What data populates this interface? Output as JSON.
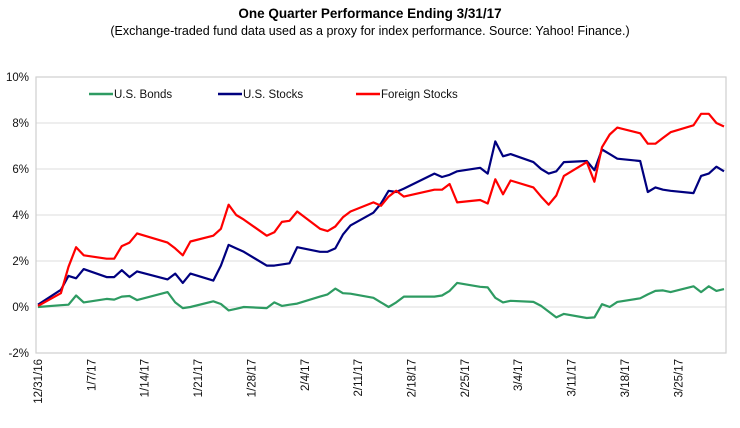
{
  "chart_data": {
    "type": "line",
    "title": "One Quarter Performance Ending  3/31/17",
    "subtitle": "(Exchange-traded fund data used as a proxy for index performance.  Source:  Yahoo! Finance.)",
    "xlabel": "",
    "ylabel": "",
    "ylim": [
      -2,
      10
    ],
    "y_ticks": [
      -2,
      0,
      2,
      4,
      6,
      8,
      10
    ],
    "y_tick_labels": [
      "-2%",
      "0%",
      "2%",
      "4%",
      "6%",
      "8%",
      "10%"
    ],
    "xlim": [
      "12/31/16",
      "3/31/17"
    ],
    "x_tick_labels": [
      "12/31/16",
      "1/7/17",
      "1/14/17",
      "1/21/17",
      "1/28/17",
      "2/4/17",
      "2/11/17",
      "2/18/17",
      "2/25/17",
      "3/4/17",
      "3/11/17",
      "3/18/17",
      "3/25/17"
    ],
    "grid": true,
    "legend_position": "top",
    "x": [
      "12/31/16",
      "1/3/17",
      "1/4/17",
      "1/5/17",
      "1/6/17",
      "1/9/17",
      "1/10/17",
      "1/11/17",
      "1/12/17",
      "1/13/17",
      "1/17/17",
      "1/18/17",
      "1/19/17",
      "1/20/17",
      "1/23/17",
      "1/24/17",
      "1/25/17",
      "1/26/17",
      "1/27/17",
      "1/30/17",
      "1/31/17",
      "2/1/17",
      "2/2/17",
      "2/3/17",
      "2/6/17",
      "2/7/17",
      "2/8/17",
      "2/9/17",
      "2/10/17",
      "2/13/17",
      "2/14/17",
      "2/15/17",
      "2/16/17",
      "2/17/17",
      "2/21/17",
      "2/22/17",
      "2/23/17",
      "2/24/17",
      "2/27/17",
      "2/28/17",
      "3/1/17",
      "3/2/17",
      "3/3/17",
      "3/6/17",
      "3/7/17",
      "3/8/17",
      "3/9/17",
      "3/10/17",
      "3/13/17",
      "3/14/17",
      "3/15/17",
      "3/16/17",
      "3/17/17",
      "3/20/17",
      "3/21/17",
      "3/22/17",
      "3/23/17",
      "3/24/17",
      "3/27/17",
      "3/28/17",
      "3/29/17",
      "3/30/17",
      "3/31/17"
    ],
    "series": [
      {
        "name": "U.S. Bonds",
        "color": "#2e9b62",
        "values": [
          0,
          0.08,
          0.1,
          0.5,
          0.2,
          0.35,
          0.32,
          0.45,
          0.48,
          0.3,
          0.65,
          0.2,
          -0.05,
          0.0,
          0.25,
          0.13,
          -0.15,
          -0.08,
          0.0,
          -0.05,
          0.2,
          0.05,
          0.1,
          0.15,
          0.45,
          0.55,
          0.8,
          0.6,
          0.58,
          0.4,
          0.2,
          0.0,
          0.2,
          0.45,
          0.45,
          0.5,
          0.7,
          1.05,
          0.88,
          0.85,
          0.4,
          0.2,
          0.27,
          0.22,
          0.05,
          -0.2,
          -0.45,
          -0.3,
          -0.48,
          -0.45,
          0.12,
          0.0,
          0.22,
          0.38,
          0.55,
          0.7,
          0.72,
          0.65,
          0.9,
          0.65,
          0.9,
          0.7,
          0.78
        ]
      },
      {
        "name": "U.S. Stocks",
        "color": "#00007f",
        "values": [
          0.1,
          0.75,
          1.35,
          1.25,
          1.65,
          1.3,
          1.3,
          1.6,
          1.3,
          1.55,
          1.2,
          1.45,
          1.05,
          1.45,
          1.15,
          1.8,
          2.7,
          2.55,
          2.4,
          1.8,
          1.8,
          1.85,
          1.9,
          2.6,
          2.4,
          2.4,
          2.55,
          3.15,
          3.55,
          4.1,
          4.5,
          5.05,
          5.0,
          5.15,
          5.8,
          5.65,
          5.75,
          5.9,
          6.05,
          5.8,
          7.2,
          6.55,
          6.65,
          6.3,
          6.0,
          5.8,
          5.9,
          6.3,
          6.35,
          5.95,
          6.85,
          6.65,
          6.45,
          6.35,
          5.0,
          5.2,
          5.1,
          5.05,
          4.95,
          5.7,
          5.8,
          6.1,
          5.9
        ]
      },
      {
        "name": "Foreign Stocks",
        "color": "#ff0000",
        "values": [
          0.05,
          0.6,
          1.75,
          2.6,
          2.25,
          2.1,
          2.1,
          2.65,
          2.8,
          3.2,
          2.8,
          2.55,
          2.25,
          2.85,
          3.1,
          3.4,
          4.45,
          4.0,
          3.8,
          3.1,
          3.25,
          3.7,
          3.75,
          4.15,
          3.4,
          3.3,
          3.5,
          3.9,
          4.15,
          4.55,
          4.4,
          4.8,
          5.05,
          4.8,
          5.1,
          5.1,
          5.35,
          4.55,
          4.65,
          4.5,
          5.55,
          4.9,
          5.5,
          5.2,
          4.8,
          4.45,
          4.85,
          5.7,
          6.3,
          5.45,
          6.95,
          7.5,
          7.8,
          7.55,
          7.1,
          7.1,
          7.35,
          7.6,
          7.9,
          8.4,
          8.4,
          8.0,
          7.85
        ]
      }
    ]
  }
}
